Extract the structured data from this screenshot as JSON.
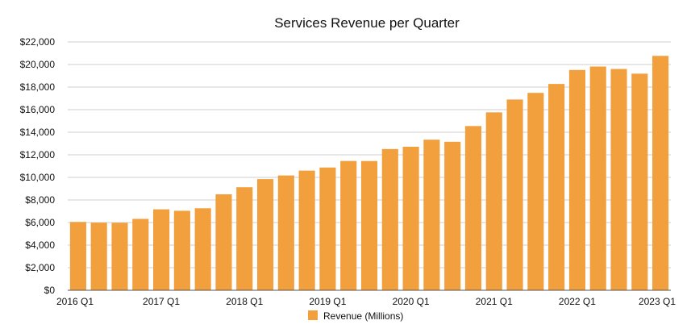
{
  "chart_data": {
    "type": "bar",
    "title": "Services Revenue per Quarter",
    "xlabel": "",
    "ylabel": "",
    "ylim": [
      0,
      22000
    ],
    "ytick_step": 2000,
    "ytick_labels": [
      "$0",
      "$2,000",
      "$4,000",
      "$6,000",
      "$8,000",
      "$10,000",
      "$12,000",
      "$14,000",
      "$16,000",
      "$18,000",
      "$20,000",
      "$22,000"
    ],
    "grid": true,
    "legend_position": "bottom-center",
    "bar_color": "#F2A03D",
    "categories": [
      "2016 Q1",
      "2016 Q2",
      "2016 Q3",
      "2016 Q4",
      "2017 Q1",
      "2017 Q2",
      "2017 Q3",
      "2017 Q4",
      "2018 Q1",
      "2018 Q2",
      "2018 Q3",
      "2018 Q4",
      "2019 Q1",
      "2019 Q2",
      "2019 Q3",
      "2019 Q4",
      "2020 Q1",
      "2020 Q2",
      "2020 Q3",
      "2020 Q4",
      "2021 Q1",
      "2021 Q2",
      "2021 Q3",
      "2021 Q4",
      "2022 Q1",
      "2022 Q2",
      "2022 Q3",
      "2022 Q4",
      "2023 Q1"
    ],
    "x_tick_labels": [
      "2016 Q1",
      "2017 Q1",
      "2018 Q1",
      "2019 Q1",
      "2020 Q1",
      "2021 Q1",
      "2022 Q1",
      "2023 Q1"
    ],
    "series": [
      {
        "name": "Revenue (Millions)",
        "values": [
          6056,
          5991,
          5976,
          6325,
          7172,
          7041,
          7266,
          8501,
          9129,
          9850,
          10170,
          10600,
          10875,
          11455,
          11450,
          12511,
          12715,
          13340,
          13156,
          14549,
          15761,
          16900,
          17486,
          18277,
          19516,
          19821,
          19604,
          19188,
          20766
        ]
      }
    ]
  }
}
